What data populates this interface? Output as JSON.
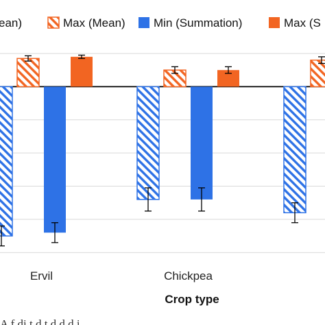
{
  "chart_data": {
    "type": "bar",
    "title": "",
    "xlabel": "Crop type",
    "ylabel": "",
    "categories": [
      "Ervil",
      "Chickpea",
      ""
    ],
    "series": [
      {
        "name": "Min (Mean)",
        "style": "hatched",
        "color": "#2e72e6",
        "values": [
          -4.5,
          -3.4,
          -3.8
        ],
        "errors": [
          0.3,
          0.35,
          0.3
        ]
      },
      {
        "name": "Max (Mean)",
        "style": "hatched",
        "color": "#f26522",
        "values": [
          0.85,
          0.5,
          0.8
        ],
        "errors": [
          0.08,
          0.1,
          0.1
        ]
      },
      {
        "name": "Min (Summation)",
        "style": "solid",
        "color": "#2e72e6",
        "values": [
          -4.4,
          -3.4,
          null
        ],
        "errors": [
          0.3,
          0.35,
          null
        ]
      },
      {
        "name": "Max (Summation)",
        "style": "solid",
        "color": "#f26522",
        "values": [
          0.9,
          0.5,
          null
        ],
        "errors": [
          0.05,
          0.1,
          null
        ]
      }
    ],
    "legend_labels": [
      "ean)",
      "Max (Mean)",
      "Min (Summation)",
      "Max (S"
    ],
    "ylim": [
      -5.2,
      1.0
    ],
    "grid": true,
    "legend_position": "top"
  },
  "caption_fragment": "A     f    di  t   d   t  d  d  d i"
}
